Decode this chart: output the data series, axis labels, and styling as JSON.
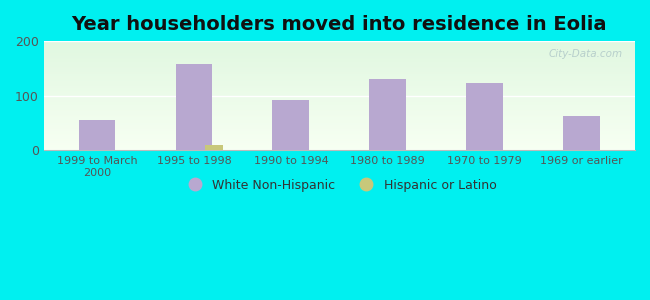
{
  "title": "Year householders moved into residence in Eolia",
  "categories": [
    "1999 to March\n2000",
    "1995 to 1998",
    "1990 to 1994",
    "1980 to 1989",
    "1970 to 1979",
    "1969 or earlier"
  ],
  "white_non_hispanic": [
    55,
    158,
    92,
    130,
    123,
    63
  ],
  "hispanic_or_latino": [
    0,
    10,
    0,
    0,
    0,
    0
  ],
  "bar_color_white": "#b8a8d0",
  "bar_color_hispanic": "#c8c87a",
  "ylim": [
    0,
    200
  ],
  "yticks": [
    0,
    100,
    200
  ],
  "background_outer": "#00f0f0",
  "title_fontsize": 14,
  "watermark": "City-Data.com",
  "legend_label_white": "White Non-Hispanic",
  "legend_label_hispanic": "Hispanic or Latino"
}
